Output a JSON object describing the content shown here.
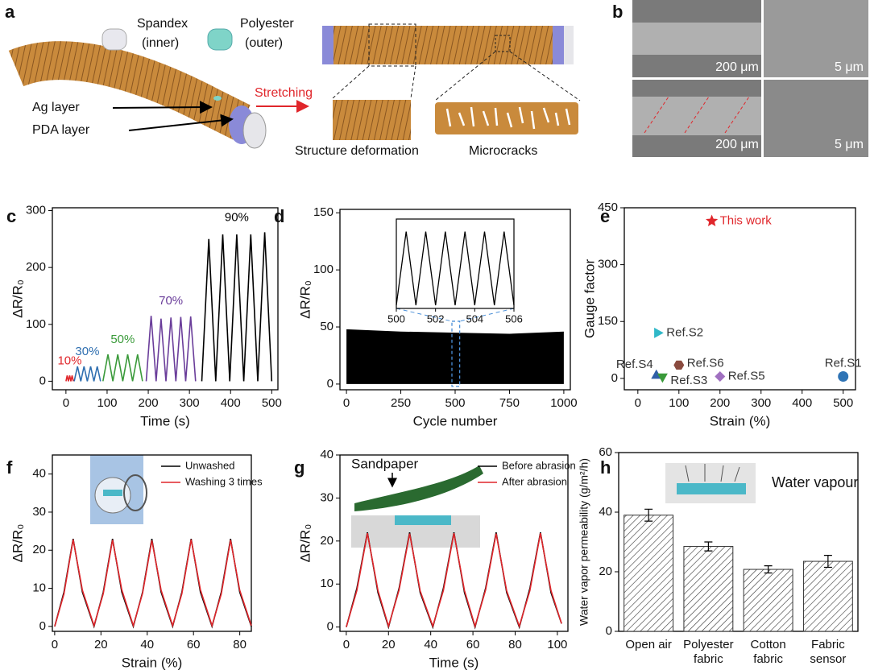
{
  "panel_a": {
    "panel": "a",
    "spandex": [
      "Spandex",
      "(inner)"
    ],
    "polyester": [
      "Polyester",
      "(outer)"
    ],
    "ag": "Ag layer",
    "pda": "PDA layer",
    "stretching": "Stretching",
    "deformation": "Structure deformation",
    "microcracks": "Microcracks"
  },
  "panel_b": {
    "panel": "b",
    "scale_bars": [
      "200 μm",
      "5 μm",
      "200 μm",
      "5 μm"
    ]
  },
  "chart_data": [
    {
      "panel": "c",
      "type": "line",
      "xlabel": "Time (s)",
      "ylabel": "ΔR/R₀",
      "xlim": [
        -33,
        515
      ],
      "xticks": [
        0,
        100,
        200,
        300,
        400,
        500
      ],
      "ylim": [
        -15,
        305
      ],
      "yticks": [
        0,
        100,
        200,
        300
      ],
      "series": [
        {
          "name": "10%",
          "color": "#e0262b",
          "x": [
            0,
            3,
            6,
            9,
            12,
            15,
            18
          ],
          "values": [
            0,
            10,
            0,
            10,
            0,
            10,
            0
          ]
        },
        {
          "name": "30%",
          "color": "#2f6fb0",
          "x": [
            20,
            28,
            36,
            44,
            52,
            60,
            68,
            76,
            84
          ],
          "values": [
            0,
            26,
            0,
            26,
            0,
            26,
            0,
            26,
            0
          ]
        },
        {
          "name": "50%",
          "color": "#3a9a3a",
          "x": [
            90,
            102,
            114,
            126,
            138,
            150,
            162,
            174,
            186
          ],
          "values": [
            0,
            47,
            0,
            47,
            0,
            47,
            0,
            47,
            0
          ]
        },
        {
          "name": "70%",
          "color": "#6a3d9a",
          "x": [
            195,
            207,
            219,
            231,
            243,
            255,
            267,
            279,
            291,
            303,
            315
          ],
          "values": [
            0,
            115,
            0,
            110,
            0,
            112,
            0,
            113,
            0,
            114,
            0
          ]
        },
        {
          "name": "90%",
          "color": "#000000",
          "x": [
            330,
            347,
            364,
            381,
            398,
            415,
            432,
            449,
            466,
            483,
            500
          ],
          "values": [
            0,
            250,
            0,
            258,
            0,
            258,
            0,
            258,
            0,
            262,
            0
          ]
        }
      ]
    },
    {
      "panel": "d",
      "type": "area",
      "xlabel": "Cycle number",
      "ylabel": "ΔR/R₀",
      "xlim": [
        -30,
        1030
      ],
      "xticks": [
        0,
        250,
        500,
        750,
        1000
      ],
      "ylim": [
        -5,
        153
      ],
      "yticks": [
        0,
        50,
        100,
        150
      ],
      "series": [
        {
          "color": "#000000",
          "x": [
            0,
            250,
            500,
            750,
            1000
          ],
          "values": [
            48,
            46,
            45,
            44,
            46
          ]
        }
      ],
      "inset": {
        "xlim": [
          500,
          506
        ],
        "xticks": [
          500,
          502,
          504,
          506
        ],
        "ylim": [
          -2,
          55
        ],
        "x": [
          500,
          500.5,
          501,
          501.5,
          502,
          502.5,
          503,
          503.5,
          504,
          504.5,
          505,
          505.5,
          506
        ],
        "values": [
          0,
          47,
          0,
          47,
          0,
          47,
          0,
          47,
          0,
          47,
          0,
          47,
          0
        ]
      }
    },
    {
      "panel": "e",
      "type": "scatter",
      "xlabel": "Strain (%)",
      "ylabel": "Gauge factor",
      "xlim": [
        -33,
        530
      ],
      "xticks": [
        0,
        100,
        200,
        300,
        400,
        500
      ],
      "ylim": [
        -30,
        450
      ],
      "yticks": [
        0,
        150,
        300,
        450
      ],
      "series": [
        {
          "name": "This work",
          "color": "#e0262b",
          "marker": "star",
          "x": [
            180
          ],
          "values": [
            415
          ]
        },
        {
          "name": "Ref.S2",
          "color": "#2fb8c8",
          "marker": "triangle-right",
          "x": [
            50
          ],
          "values": [
            120
          ]
        },
        {
          "name": "Ref.S4",
          "color": "#2f5fa8",
          "marker": "triangle-up",
          "x": [
            45
          ],
          "values": [
            10
          ]
        },
        {
          "name": "Ref.S6",
          "color": "#8a4b3f",
          "marker": "hexagon",
          "x": [
            100
          ],
          "values": [
            35
          ]
        },
        {
          "name": "Ref.S3",
          "color": "#3a9a3a",
          "marker": "triangle-down",
          "x": [
            60
          ],
          "values": [
            2
          ]
        },
        {
          "name": "Ref.S5",
          "color": "#a070c0",
          "marker": "diamond",
          "x": [
            200
          ],
          "values": [
            5
          ]
        },
        {
          "name": "Ref.S1",
          "color": "#2f74b5",
          "marker": "circle",
          "x": [
            500
          ],
          "values": [
            5
          ]
        }
      ]
    },
    {
      "panel": "f",
      "type": "line",
      "xlabel": "Strain (%)",
      "ylabel": "ΔR/R₀",
      "xlim": [
        -1,
        85
      ],
      "xticks": [
        0,
        20,
        40,
        60,
        80
      ],
      "ylim": [
        -1.3,
        45
      ],
      "yticks": [
        0,
        10,
        20,
        30,
        40
      ],
      "legend": "upper right",
      "x": [
        0,
        4,
        8,
        12,
        17,
        21,
        25,
        29,
        34,
        38,
        42,
        46,
        51,
        55,
        59,
        63,
        68,
        72,
        76,
        80,
        85
      ],
      "series": [
        {
          "name": "Unwashed",
          "color": "#000000",
          "values": [
            0,
            9,
            23,
            9,
            0,
            9,
            23,
            9,
            0,
            9,
            23,
            9,
            0,
            9,
            23,
            9,
            0,
            9,
            23,
            9,
            0
          ]
        },
        {
          "name": "Washing 3 times",
          "color": "#e0262b",
          "values": [
            0,
            8.5,
            22.8,
            9.5,
            0.2,
            8.6,
            22.7,
            9.6,
            0.2,
            8.7,
            22.6,
            9.5,
            0.2,
            8.6,
            22.8,
            9.6,
            0.2,
            8.5,
            22.7,
            9.5,
            0.2
          ]
        }
      ]
    },
    {
      "panel": "g",
      "type": "line",
      "xlabel": "Time (s)",
      "ylabel": "ΔR/R₀",
      "xlim": [
        -3,
        105
      ],
      "xticks": [
        0,
        20,
        40,
        60,
        80,
        100
      ],
      "ylim": [
        -1,
        40
      ],
      "yticks": [
        0,
        10,
        20,
        30,
        40
      ],
      "legend": "upper right",
      "annotation": "Sandpaper",
      "x": [
        0,
        5,
        10,
        15,
        20,
        25,
        30,
        35,
        41,
        46,
        51,
        56,
        61,
        66,
        71,
        76,
        82,
        87,
        92,
        97,
        102
      ],
      "series": [
        {
          "name": "Before abrasion",
          "color": "#000000",
          "values": [
            0,
            9,
            22,
            8,
            0,
            9,
            22,
            8,
            0,
            9,
            22,
            8,
            0,
            9,
            22,
            8,
            0,
            9,
            22,
            8,
            0.8
          ]
        },
        {
          "name": "After abrasion",
          "color": "#e0262b",
          "values": [
            0,
            8.5,
            21.8,
            8.5,
            0.2,
            8.6,
            21.7,
            8.4,
            0.2,
            8.5,
            21.8,
            8.5,
            0.2,
            8.6,
            21.7,
            8.4,
            0.2,
            8.5,
            21.8,
            8.5,
            0.8
          ]
        }
      ]
    },
    {
      "panel": "h",
      "type": "bar",
      "ylabel": "Water vapor permeability (g/m²/h)",
      "annotation": "Water vapour",
      "categories": [
        [
          "Open air"
        ],
        [
          "Polyester",
          "fabric"
        ],
        [
          "Cotton",
          "fabric"
        ],
        [
          "Fabric",
          "sensor"
        ]
      ],
      "values": [
        39,
        28.5,
        20.8,
        23.5
      ],
      "errors": [
        2,
        1.5,
        1.2,
        2
      ],
      "color": "#333333",
      "ylim": [
        0,
        60
      ],
      "yticks": [
        0,
        20,
        40,
        60
      ]
    }
  ]
}
